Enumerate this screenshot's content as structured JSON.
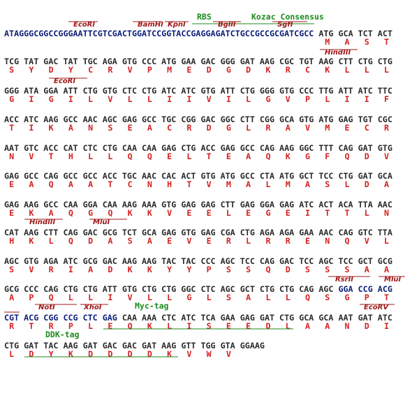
{
  "lines": [
    {
      "dna": [
        {
          "text": "ATAGGGCGGCCGGGAATTCGTCGACTGGATCCGGTACCGAGGAGATCTGCCGCCGCGATCGCC",
          "color": "#0b1e78"
        },
        {
          "text": " ATG GCA TCT ACT",
          "color": "#2a2a2a"
        }
      ],
      "aa": [
        "M",
        "A",
        "S",
        "T"
      ]
    },
    {
      "dna": [
        {
          "text": "TCG TAT GAC TAT TGC AGA GTG CCC ATG GAA GAC GGG GAT AAG CGC TGT AAG CTT CTG CTG",
          "color": "#2a2a2a"
        }
      ],
      "aa": [
        "S",
        "Y",
        "D",
        "Y",
        "C",
        "R",
        "V",
        "P",
        "M",
        "E",
        "D",
        "G",
        "D",
        "K",
        "R",
        "C",
        "K",
        "L",
        "L",
        "L"
      ]
    },
    {
      "dna": [
        {
          "text": "GGG ATA GGA ATT CTG GTG CTC CTG ATC ATC GTG ATT CTG GGG GTG CCC TTG ATT ATC TTC",
          "color": "#2a2a2a"
        }
      ],
      "aa": [
        "G",
        "I",
        "G",
        "I",
        "L",
        "V",
        "L",
        "L",
        "I",
        "I",
        "V",
        "I",
        "L",
        "G",
        "V",
        "P",
        "L",
        "I",
        "I",
        "F"
      ]
    },
    {
      "dna": [
        {
          "text": "ACC ATC AAG GCC AAC AGC GAG GCC TGC CGG GAC GGC CTT CGG GCA GTG ATG GAG TGT CGC",
          "color": "#2a2a2a"
        }
      ],
      "aa": [
        "T",
        "I",
        "K",
        "A",
        "N",
        "S",
        "E",
        "A",
        "C",
        "R",
        "D",
        "G",
        "L",
        "R",
        "A",
        "V",
        "M",
        "E",
        "C",
        "R"
      ]
    },
    {
      "dna": [
        {
          "text": "AAT GTC ACC CAT CTC CTG CAA CAA GAG CTG ACC GAG GCC CAG AAG GGC TTT CAG GAT GTG",
          "color": "#2a2a2a"
        }
      ],
      "aa": [
        "N",
        "V",
        "T",
        "H",
        "L",
        "L",
        "Q",
        "Q",
        "E",
        "L",
        "T",
        "E",
        "A",
        "Q",
        "K",
        "G",
        "F",
        "Q",
        "D",
        "V"
      ]
    },
    {
      "dna": [
        {
          "text": "GAG GCC CAG GCC GCC ACC TGC AAC CAC ACT GTG ATG GCC CTA ATG GCT TCC CTG GAT GCA",
          "color": "#2a2a2a"
        }
      ],
      "aa": [
        "E",
        "A",
        "Q",
        "A",
        "A",
        "T",
        "C",
        "N",
        "H",
        "T",
        "V",
        "M",
        "A",
        "L",
        "M",
        "A",
        "S",
        "L",
        "D",
        "A"
      ]
    },
    {
      "dna": [
        {
          "text": "GAG AAG GCC CAA GGA CAA AAG AAA GTG GAG GAG CTT GAG GGA GAG ATC ACT ACA TTA AAC",
          "color": "#2a2a2a"
        }
      ],
      "aa": [
        "E",
        "K",
        "A",
        "Q",
        "G",
        "Q",
        "K",
        "K",
        "V",
        "E",
        "E",
        "L",
        "E",
        "G",
        "E",
        "I",
        "T",
        "T",
        "L",
        "N"
      ]
    },
    {
      "dna": [
        {
          "text": "CAT AAG CTT CAG GAC GCG TCT GCA GAG GTG GAG CGA CTG AGA AGA GAA AAC CAG GTC TTA",
          "color": "#2a2a2a"
        }
      ],
      "aa": [
        "H",
        "K",
        "L",
        "Q",
        "D",
        "A",
        "S",
        "A",
        "E",
        "V",
        "E",
        "R",
        "L",
        "R",
        "R",
        "E",
        "N",
        "Q",
        "V",
        "L"
      ]
    },
    {
      "dna": [
        {
          "text": "AGC GTG AGA ATC GCG GAC AAG AAG TAC TAC CCC AGC TCC CAG GAC TCC AGC TCC GCT GCG",
          "color": "#2a2a2a"
        }
      ],
      "aa": [
        "S",
        "V",
        "R",
        "I",
        "A",
        "D",
        "K",
        "K",
        "Y",
        "Y",
        "P",
        "S",
        "S",
        "Q",
        "D",
        "S",
        "S",
        "S",
        "A",
        "A"
      ]
    },
    {
      "dna": [
        {
          "text": "GCG CCC CAG CTG CTG ATT GTG CTG CTG GGC CTC AGC GCT CTG CTG CAG AGC ",
          "color": "#2a2a2a"
        },
        {
          "text": "GGA CCG ACG",
          "color": "#0b1e78"
        }
      ],
      "aa": [
        "A",
        "P",
        "Q",
        "L",
        "L",
        "I",
        "V",
        "L",
        "L",
        "G",
        "L",
        "S",
        "A",
        "L",
        "L",
        "Q",
        "S",
        "G",
        "P",
        "T"
      ]
    },
    {
      "dna": [
        {
          "text": "CGT ACG CGG CCG CTC GAG",
          "color": "#0b1e78"
        },
        {
          "text": " CAA AAA CTC ATC TCA GAA GAG GAT CTG GCA GCA AAT GAT ATC",
          "color": "#2a2a2a"
        }
      ],
      "aa": [
        "R",
        "T",
        "R",
        "P",
        "L",
        "E",
        "Q",
        "K",
        "L",
        "I",
        "S",
        "E",
        "E",
        "D",
        "L",
        "A",
        "A",
        "N",
        "D",
        "I"
      ]
    },
    {
      "dna": [
        {
          "text": "CTG GAT TAC AAG GAT GAC GAC GAT AAG GTT TGG GTA GGAAG",
          "color": "#2a2a2a"
        }
      ],
      "aa": [
        "L",
        "D",
        "Y",
        "K",
        "D",
        "D",
        "D",
        "D",
        "K",
        "V",
        "W",
        "V"
      ]
    }
  ],
  "aa_color": "#d42020",
  "annotations": [
    {
      "label": "EcoRI",
      "style": "site"
    },
    {
      "label": "BamHI",
      "style": "site"
    },
    {
      "label": "KpnI",
      "style": "site"
    },
    {
      "label": "RBS",
      "style": "tag"
    },
    {
      "label": "Kozac Consensus",
      "style": "tag"
    },
    {
      "label": "BglII",
      "style": "site"
    },
    {
      "label": "SgfI",
      "style": "site"
    },
    {
      "label": "HindIII",
      "style": "site"
    },
    {
      "label": "EcoRI",
      "style": "site"
    },
    {
      "label": "HindIII",
      "style": "site"
    },
    {
      "label": "MluI",
      "style": "site"
    },
    {
      "label": "RsrII",
      "style": "site"
    },
    {
      "label": "MluI",
      "style": "site"
    },
    {
      "label": "NotI",
      "style": "site"
    },
    {
      "label": "XhoI",
      "style": "site"
    },
    {
      "label": "Myc-tag",
      "style": "tag"
    },
    {
      "label": "EcoRV",
      "style": "site"
    },
    {
      "label": "DDK-tag",
      "style": "tag"
    }
  ],
  "site_color": "#a01818",
  "tag_color": "#1e8a1e"
}
